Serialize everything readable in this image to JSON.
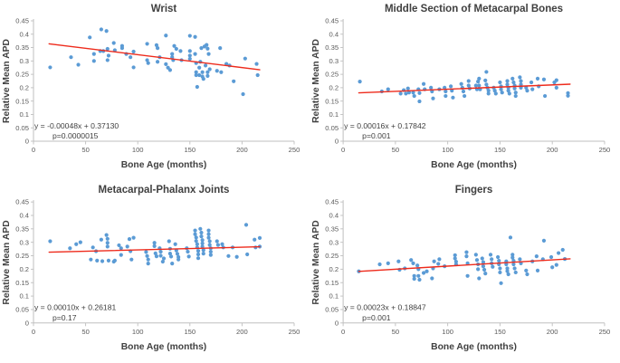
{
  "figure": {
    "background": "#ffffff",
    "layout": "2x2-grid"
  },
  "colors": {
    "marker": "#5B9BD5",
    "trendline": "#EE2B1C",
    "axis_line": "#BFBFBF",
    "tick_text": "#595959",
    "title_text": "#404040",
    "axis_label_text": "#404040",
    "equation_text": "#404040"
  },
  "chart_data": [
    {
      "type": "scatter",
      "title": "Wrist",
      "xlabel": "Bone Age (months)",
      "ylabel": "Relative Mean APD",
      "xlim": [
        0,
        250
      ],
      "ylim": [
        0,
        0.45
      ],
      "xticks": [
        0,
        50,
        100,
        150,
        200,
        250
      ],
      "yticks": [
        0,
        0.05,
        0.1,
        0.15,
        0.2,
        0.25,
        0.3,
        0.35,
        0.4,
        0.45
      ],
      "grid": false,
      "legend": false,
      "equation": "y = -0.00048x + 0.37130",
      "p_value": "p=0.0000015",
      "trendline": {
        "slope": -0.00048,
        "intercept": 0.3713,
        "x_start": 15,
        "x_end": 217
      },
      "points": [
        [
          16,
          0.276
        ],
        [
          36,
          0.314
        ],
        [
          43,
          0.286
        ],
        [
          54,
          0.388
        ],
        [
          58,
          0.326
        ],
        [
          58,
          0.3
        ],
        [
          64,
          0.337
        ],
        [
          65,
          0.418
        ],
        [
          67,
          0.337
        ],
        [
          70,
          0.412
        ],
        [
          71,
          0.345
        ],
        [
          71,
          0.303
        ],
        [
          72,
          0.32
        ],
        [
          77,
          0.367
        ],
        [
          78,
          0.34
        ],
        [
          85,
          0.356
        ],
        [
          85,
          0.348
        ],
        [
          89,
          0.326
        ],
        [
          93,
          0.314
        ],
        [
          96,
          0.335
        ],
        [
          96,
          0.276
        ],
        [
          109,
          0.364
        ],
        [
          109,
          0.303
        ],
        [
          110,
          0.292
        ],
        [
          118,
          0.359
        ],
        [
          119,
          0.348
        ],
        [
          119,
          0.297
        ],
        [
          121,
          0.314
        ],
        [
          127,
          0.395
        ],
        [
          127,
          0.288
        ],
        [
          129,
          0.275
        ],
        [
          131,
          0.266
        ],
        [
          133,
          0.326
        ],
        [
          133,
          0.314
        ],
        [
          134,
          0.303
        ],
        [
          135,
          0.356
        ],
        [
          137,
          0.345
        ],
        [
          141,
          0.337
        ],
        [
          142,
          0.303
        ],
        [
          150,
          0.394
        ],
        [
          150,
          0.337
        ],
        [
          150,
          0.32
        ],
        [
          150,
          0.308
        ],
        [
          155,
          0.39
        ],
        [
          155,
          0.326
        ],
        [
          156,
          0.292
        ],
        [
          156,
          0.258
        ],
        [
          156,
          0.247
        ],
        [
          157,
          0.203
        ],
        [
          159,
          0.275
        ],
        [
          159,
          0.247
        ],
        [
          160,
          0.297
        ],
        [
          161,
          0.348
        ],
        [
          162,
          0.258
        ],
        [
          162,
          0.242
        ],
        [
          163,
          0.233
        ],
        [
          164,
          0.354
        ],
        [
          165,
          0.283
        ],
        [
          166,
          0.36
        ],
        [
          167,
          0.346
        ],
        [
          167,
          0.258
        ],
        [
          167,
          0.244
        ],
        [
          168,
          0.326
        ],
        [
          169,
          0.269
        ],
        [
          176,
          0.263
        ],
        [
          179,
          0.348
        ],
        [
          180,
          0.258
        ],
        [
          185,
          0.289
        ],
        [
          188,
          0.283
        ],
        [
          192,
          0.224
        ],
        [
          201,
          0.176
        ],
        [
          203,
          0.309
        ],
        [
          214,
          0.289
        ],
        [
          215,
          0.247
        ]
      ]
    },
    {
      "type": "scatter",
      "title": "Middle Section of Metacarpal Bones",
      "xlabel": "Bone Age (months)",
      "ylabel": "Relative Mean APD",
      "xlim": [
        0,
        250
      ],
      "ylim": [
        0,
        0.45
      ],
      "xticks": [
        0,
        50,
        100,
        150,
        200,
        250
      ],
      "yticks": [
        0,
        0.05,
        0.1,
        0.15,
        0.2,
        0.25,
        0.3,
        0.35,
        0.4,
        0.45
      ],
      "grid": false,
      "legend": false,
      "equation": "y = 0.00016x + 0.17842",
      "p_value": "p=0.001",
      "trendline": {
        "slope": 0.00016,
        "intercept": 0.17842,
        "x_start": 15,
        "x_end": 217
      },
      "points": [
        [
          16,
          0.223
        ],
        [
          37,
          0.186
        ],
        [
          43,
          0.194
        ],
        [
          55,
          0.178
        ],
        [
          58,
          0.191
        ],
        [
          60,
          0.178
        ],
        [
          62,
          0.197
        ],
        [
          63,
          0.182
        ],
        [
          67,
          0.182
        ],
        [
          68,
          0.169
        ],
        [
          72,
          0.194
        ],
        [
          73,
          0.18
        ],
        [
          73,
          0.149
        ],
        [
          77,
          0.214
        ],
        [
          78,
          0.194
        ],
        [
          84,
          0.2
        ],
        [
          85,
          0.186
        ],
        [
          86,
          0.16
        ],
        [
          92,
          0.194
        ],
        [
          97,
          0.2
        ],
        [
          98,
          0.186
        ],
        [
          98,
          0.169
        ],
        [
          103,
          0.205
        ],
        [
          104,
          0.189
        ],
        [
          105,
          0.163
        ],
        [
          113,
          0.214
        ],
        [
          114,
          0.2
        ],
        [
          115,
          0.186
        ],
        [
          116,
          0.169
        ],
        [
          120,
          0.225
        ],
        [
          120,
          0.208
        ],
        [
          121,
          0.197
        ],
        [
          127,
          0.208
        ],
        [
          128,
          0.194
        ],
        [
          129,
          0.223
        ],
        [
          130,
          0.234
        ],
        [
          130,
          0.208
        ],
        [
          131,
          0.194
        ],
        [
          136,
          0.227
        ],
        [
          137,
          0.259
        ],
        [
          137,
          0.212
        ],
        [
          138,
          0.2
        ],
        [
          139,
          0.189
        ],
        [
          139,
          0.178
        ],
        [
          144,
          0.2
        ],
        [
          145,
          0.189
        ],
        [
          146,
          0.178
        ],
        [
          150,
          0.22
        ],
        [
          151,
          0.205
        ],
        [
          151,
          0.194
        ],
        [
          152,
          0.182
        ],
        [
          157,
          0.225
        ],
        [
          157,
          0.212
        ],
        [
          158,
          0.2
        ],
        [
          158,
          0.189
        ],
        [
          159,
          0.178
        ],
        [
          162,
          0.234
        ],
        [
          163,
          0.22
        ],
        [
          164,
          0.208
        ],
        [
          164,
          0.197
        ],
        [
          165,
          0.182
        ],
        [
          165,
          0.169
        ],
        [
          169,
          0.239
        ],
        [
          170,
          0.225
        ],
        [
          170,
          0.212
        ],
        [
          170,
          0.2
        ],
        [
          175,
          0.2
        ],
        [
          176,
          0.189
        ],
        [
          180,
          0.22
        ],
        [
          181,
          0.194
        ],
        [
          186,
          0.234
        ],
        [
          187,
          0.205
        ],
        [
          192,
          0.231
        ],
        [
          193,
          0.169
        ],
        [
          202,
          0.22
        ],
        [
          204,
          0.228
        ],
        [
          204,
          0.2
        ],
        [
          215,
          0.18
        ],
        [
          215,
          0.17
        ]
      ]
    },
    {
      "type": "scatter",
      "title": "Metacarpal-Phalanx Joints",
      "xlabel": "Bone Age (months)",
      "ylabel": "Relative Mean APD",
      "xlim": [
        0,
        250
      ],
      "ylim": [
        0,
        0.45
      ],
      "xticks": [
        0,
        50,
        100,
        150,
        200,
        250
      ],
      "yticks": [
        0,
        0.05,
        0.1,
        0.15,
        0.2,
        0.25,
        0.3,
        0.35,
        0.4,
        0.45
      ],
      "grid": false,
      "legend": false,
      "equation": "y = 0.00010x + 0.26181",
      "p_value": "p=0.17",
      "trendline": {
        "slope": 0.0001,
        "intercept": 0.26181,
        "x_start": 15,
        "x_end": 217
      },
      "points": [
        [
          16,
          0.304
        ],
        [
          35,
          0.278
        ],
        [
          41,
          0.293
        ],
        [
          45,
          0.3
        ],
        [
          55,
          0.236
        ],
        [
          57,
          0.281
        ],
        [
          60,
          0.267
        ],
        [
          61,
          0.232
        ],
        [
          65,
          0.31
        ],
        [
          66,
          0.23
        ],
        [
          70,
          0.327
        ],
        [
          71,
          0.313
        ],
        [
          71,
          0.298
        ],
        [
          71,
          0.284
        ],
        [
          72,
          0.232
        ],
        [
          77,
          0.228
        ],
        [
          78,
          0.232
        ],
        [
          82,
          0.289
        ],
        [
          84,
          0.278
        ],
        [
          84,
          0.253
        ],
        [
          90,
          0.284
        ],
        [
          92,
          0.312
        ],
        [
          93,
          0.267
        ],
        [
          94,
          0.236
        ],
        [
          96,
          0.317
        ],
        [
          108,
          0.264
        ],
        [
          109,
          0.249
        ],
        [
          110,
          0.236
        ],
        [
          110,
          0.221
        ],
        [
          116,
          0.298
        ],
        [
          116,
          0.286
        ],
        [
          117,
          0.259
        ],
        [
          118,
          0.248
        ],
        [
          121,
          0.278
        ],
        [
          122,
          0.265
        ],
        [
          122,
          0.25
        ],
        [
          124,
          0.228
        ],
        [
          125,
          0.24
        ],
        [
          130,
          0.304
        ],
        [
          131,
          0.276
        ],
        [
          131,
          0.258
        ],
        [
          132,
          0.247
        ],
        [
          133,
          0.221
        ],
        [
          136,
          0.293
        ],
        [
          137,
          0.27
        ],
        [
          138,
          0.257
        ],
        [
          139,
          0.245
        ],
        [
          139,
          0.236
        ],
        [
          147,
          0.278
        ],
        [
          148,
          0.265
        ],
        [
          149,
          0.247
        ],
        [
          155,
          0.344
        ],
        [
          155,
          0.33
        ],
        [
          156,
          0.318
        ],
        [
          156,
          0.305
        ],
        [
          157,
          0.293
        ],
        [
          157,
          0.281
        ],
        [
          158,
          0.268
        ],
        [
          158,
          0.255
        ],
        [
          158,
          0.241
        ],
        [
          160,
          0.35
        ],
        [
          161,
          0.336
        ],
        [
          161,
          0.322
        ],
        [
          162,
          0.308
        ],
        [
          162,
          0.296
        ],
        [
          162,
          0.284
        ],
        [
          163,
          0.271
        ],
        [
          163,
          0.258
        ],
        [
          168,
          0.344
        ],
        [
          168,
          0.33
        ],
        [
          168,
          0.317
        ],
        [
          169,
          0.304
        ],
        [
          169,
          0.29
        ],
        [
          170,
          0.278
        ],
        [
          170,
          0.265
        ],
        [
          170,
          0.253
        ],
        [
          176,
          0.304
        ],
        [
          177,
          0.29
        ],
        [
          181,
          0.293
        ],
        [
          182,
          0.281
        ],
        [
          187,
          0.249
        ],
        [
          191,
          0.281
        ],
        [
          195,
          0.246
        ],
        [
          204,
          0.365
        ],
        [
          205,
          0.255
        ],
        [
          212,
          0.31
        ],
        [
          213,
          0.281
        ],
        [
          217,
          0.284
        ],
        [
          217,
          0.316
        ]
      ]
    },
    {
      "type": "scatter",
      "title": "Fingers",
      "xlabel": "Bone Age (months)",
      "ylabel": "Relative Mean APD",
      "xlim": [
        0,
        250
      ],
      "ylim": [
        0,
        0.45
      ],
      "xticks": [
        0,
        50,
        100,
        150,
        200,
        250
      ],
      "yticks": [
        0,
        0.05,
        0.1,
        0.15,
        0.2,
        0.25,
        0.3,
        0.35,
        0.4,
        0.45
      ],
      "grid": false,
      "legend": false,
      "equation": "y = 0.00023x + 0.18847",
      "p_value": "p=0.001",
      "trendline": {
        "slope": 0.00023,
        "intercept": 0.18847,
        "x_start": 15,
        "x_end": 217
      },
      "points": [
        [
          15,
          0.192
        ],
        [
          35,
          0.218
        ],
        [
          43,
          0.222
        ],
        [
          53,
          0.229
        ],
        [
          54,
          0.198
        ],
        [
          59,
          0.203
        ],
        [
          65,
          0.234
        ],
        [
          67,
          0.222
        ],
        [
          68,
          0.175
        ],
        [
          68,
          0.164
        ],
        [
          71,
          0.214
        ],
        [
          72,
          0.2
        ],
        [
          72,
          0.175
        ],
        [
          73,
          0.161
        ],
        [
          77,
          0.186
        ],
        [
          80,
          0.192
        ],
        [
          85,
          0.166
        ],
        [
          86,
          0.203
        ],
        [
          87,
          0.229
        ],
        [
          91,
          0.22
        ],
        [
          92,
          0.237
        ],
        [
          97,
          0.211
        ],
        [
          107,
          0.252
        ],
        [
          107,
          0.24
        ],
        [
          108,
          0.228
        ],
        [
          108,
          0.218
        ],
        [
          118,
          0.263
        ],
        [
          118,
          0.248
        ],
        [
          119,
          0.222
        ],
        [
          119,
          0.175
        ],
        [
          127,
          0.254
        ],
        [
          128,
          0.234
        ],
        [
          129,
          0.218
        ],
        [
          129,
          0.2
        ],
        [
          130,
          0.166
        ],
        [
          133,
          0.24
        ],
        [
          134,
          0.226
        ],
        [
          134,
          0.211
        ],
        [
          135,
          0.198
        ],
        [
          136,
          0.184
        ],
        [
          141,
          0.254
        ],
        [
          142,
          0.237
        ],
        [
          142,
          0.222
        ],
        [
          143,
          0.209
        ],
        [
          148,
          0.245
        ],
        [
          149,
          0.231
        ],
        [
          149,
          0.218
        ],
        [
          150,
          0.203
        ],
        [
          150,
          0.188
        ],
        [
          151,
          0.148
        ],
        [
          156,
          0.229
        ],
        [
          156,
          0.218
        ],
        [
          157,
          0.203
        ],
        [
          157,
          0.193
        ],
        [
          158,
          0.181
        ],
        [
          160,
          0.318
        ],
        [
          162,
          0.254
        ],
        [
          162,
          0.243
        ],
        [
          163,
          0.231
        ],
        [
          163,
          0.218
        ],
        [
          164,
          0.203
        ],
        [
          165,
          0.188
        ],
        [
          169,
          0.237
        ],
        [
          170,
          0.222
        ],
        [
          175,
          0.195
        ],
        [
          176,
          0.181
        ],
        [
          181,
          0.229
        ],
        [
          185,
          0.248
        ],
        [
          186,
          0.195
        ],
        [
          191,
          0.237
        ],
        [
          192,
          0.306
        ],
        [
          199,
          0.245
        ],
        [
          200,
          0.207
        ],
        [
          204,
          0.216
        ],
        [
          206,
          0.26
        ],
        [
          210,
          0.272
        ],
        [
          212,
          0.238
        ]
      ]
    }
  ]
}
